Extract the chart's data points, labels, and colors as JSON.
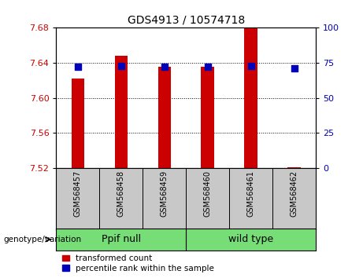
{
  "title": "GDS4913 / 10574718",
  "samples": [
    "GSM568457",
    "GSM568458",
    "GSM568459",
    "GSM568460",
    "GSM568461",
    "GSM568462"
  ],
  "transformed_count": [
    7.622,
    7.648,
    7.636,
    7.636,
    7.68,
    7.521
  ],
  "percentile_rank": [
    72,
    73,
    72,
    72,
    73,
    71
  ],
  "ylim_left": [
    7.52,
    7.68
  ],
  "ylim_right": [
    0,
    100
  ],
  "yticks_left": [
    7.52,
    7.56,
    7.6,
    7.64,
    7.68
  ],
  "yticks_right": [
    0,
    25,
    50,
    75,
    100
  ],
  "groups": [
    {
      "label": "Ppif null",
      "start": 0,
      "end": 2
    },
    {
      "label": "wild type",
      "start": 3,
      "end": 5
    }
  ],
  "bar_color": "#CC0000",
  "dot_color": "#0000BB",
  "bar_width": 0.3,
  "dot_size": 30,
  "ylabel_left_color": "#CC0000",
  "ylabel_right_color": "#0000BB",
  "background_plot": "#FFFFFF",
  "background_label": "#C8C8C8",
  "background_group": "#77DD77",
  "legend_items": [
    "transformed count",
    "percentile rank within the sample"
  ],
  "genotype_label": "genotype/variation",
  "title_fontsize": 10,
  "tick_fontsize": 8,
  "sample_fontsize": 7,
  "group_fontsize": 9,
  "legend_fontsize": 7.5
}
